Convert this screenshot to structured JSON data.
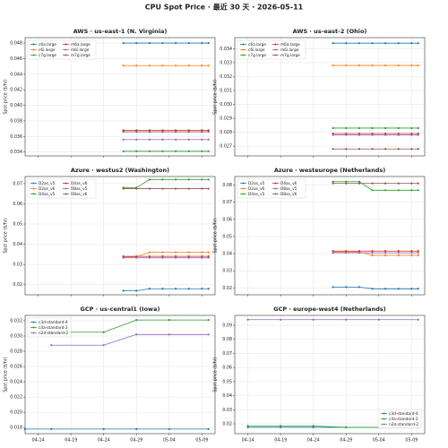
{
  "title": "CPU Spot Price · 最近 30 天 · 2026-05-11",
  "chart_data": [
    {
      "type": "line",
      "title": "AWS · us-east-1 (N. Virginia)",
      "y_label": "Spot price ($/hr)",
      "legend": "upper left",
      "grid": true,
      "xlim": [
        "04-12",
        "05-11"
      ],
      "xticks": [
        "04-14",
        "04-19",
        "04-24",
        "04-29",
        "05-04",
        "05-09"
      ],
      "ylim": [
        0.0335,
        0.0487
      ],
      "yticks": [
        0.034,
        0.036,
        0.038,
        {
          "value": 0.04,
          "label": "0.040"
        },
        0.042,
        0.044,
        0.046,
        0.048
      ],
      "x": [
        "04-27",
        "04-29",
        "05-01",
        "05-03",
        "05-05",
        "05-07",
        "05-09",
        "05-10"
      ],
      "series": [
        {
          "name": "c6a.large",
          "color": "#1f77b4",
          "values": [
            0.048,
            0.048,
            0.048,
            0.048,
            0.048,
            0.048,
            0.048,
            0.048
          ]
        },
        {
          "name": "c6i.large",
          "color": "#ff7f0e",
          "values": [
            0.0451,
            0.0451,
            0.0451,
            0.0451,
            0.0451,
            0.0451,
            0.0451,
            0.0451
          ]
        },
        {
          "name": "c7g.large",
          "color": "#2ca02c",
          "values": [
            0.0341,
            0.0341,
            0.0341,
            0.0341,
            0.0341,
            0.0341,
            0.0341,
            0.0341
          ]
        },
        {
          "name": "m6a.large",
          "color": "#d62728",
          "values": [
            0.0368,
            0.0368,
            0.0368,
            0.0368,
            0.0368,
            0.0368,
            0.0368,
            0.0368
          ]
        },
        {
          "name": "m6i.large",
          "color": "#9467bd",
          "values": [
            0.0356,
            0.0356,
            0.0356,
            0.0356,
            0.0356,
            0.0356,
            0.0356,
            0.0356
          ]
        },
        {
          "name": "m7g.large",
          "color": "#8c564b",
          "values": [
            0.0366,
            0.0366,
            0.0366,
            0.0366,
            0.0366,
            0.0366,
            0.0366,
            0.0366
          ]
        }
      ]
    },
    {
      "type": "line",
      "title": "AWS · us-east-2 (Ohio)",
      "y_label": "Spot price ($/hr)",
      "legend": "upper left",
      "grid": true,
      "xlim": [
        "04-12",
        "05-11"
      ],
      "xticks": [
        "04-14",
        "04-19",
        "04-24",
        "04-29",
        "05-04",
        "05-09"
      ],
      "ylim": [
        0.0263,
        0.0348
      ],
      "yticks": [
        0.027,
        0.028,
        0.029,
        {
          "value": 0.03,
          "label": "0.030"
        },
        0.031,
        0.032,
        0.033,
        0.034
      ],
      "x": [
        "04-27",
        "04-29",
        "05-01",
        "05-03",
        "05-05",
        "05-07",
        "05-09",
        "05-10"
      ],
      "series": [
        {
          "name": "c6a.large",
          "color": "#1f77b4",
          "values": [
            0.0344,
            0.0344,
            0.0344,
            0.0344,
            0.0344,
            0.0344,
            0.0344,
            0.0344
          ]
        },
        {
          "name": "c6i.large",
          "color": "#ff7f0e",
          "values": [
            0.0328,
            0.0328,
            0.0328,
            0.0328,
            0.0328,
            0.0328,
            0.0328,
            0.0328
          ]
        },
        {
          "name": "c7g.large",
          "color": "#2ca02c",
          "values": [
            0.0283,
            0.0283,
            0.0283,
            0.0283,
            0.0283,
            0.0283,
            0.0283,
            0.0283
          ]
        },
        {
          "name": "m6a.large",
          "color": "#d62728",
          "values": [
            0.0279,
            0.0279,
            0.0279,
            0.0279,
            0.0279,
            0.0279,
            0.0279,
            0.0279
          ]
        },
        {
          "name": "m6i.large",
          "color": "#9467bd",
          "values": [
            0.0278,
            0.0278,
            0.0278,
            0.0278,
            0.0278,
            0.0278,
            0.0278,
            0.0278
          ]
        },
        {
          "name": "m7g.large",
          "color": "#8c564b",
          "values": [
            0.0268,
            0.0268,
            0.0268,
            0.0268,
            0.0268,
            0.0268,
            0.0268,
            0.0268
          ]
        }
      ]
    },
    {
      "type": "line",
      "title": "Azure · westus2 (Washington)",
      "y_label": "Spot price ($/hr)",
      "legend": "upper left",
      "grid": true,
      "xlim": [
        "04-12",
        "05-11"
      ],
      "xticks": [
        "04-14",
        "04-19",
        "04-24",
        "04-29",
        "05-04",
        "05-09"
      ],
      "ylim": [
        0.015,
        0.0735
      ],
      "yticks": [
        0.02,
        0.03,
        0.04,
        0.05,
        0.06,
        0.07
      ],
      "x": [
        "04-27",
        "04-29",
        "05-01",
        "05-03",
        "05-05",
        "05-07",
        "05-09",
        "05-10"
      ],
      "series": [
        {
          "name": "D2as_v5",
          "color": "#1f77b4",
          "values": [
            0.017,
            0.017,
            0.018,
            0.018,
            0.018,
            0.018,
            0.018,
            0.018
          ]
        },
        {
          "name": "D2as_v6",
          "color": "#ff7f0e",
          "values": [
            0.0338,
            0.0338,
            0.036,
            0.036,
            0.036,
            0.036,
            0.036,
            0.036
          ]
        },
        {
          "name": "D4as_v5",
          "color": "#2ca02c",
          "values": [
            0.068,
            0.068,
            0.072,
            0.072,
            0.072,
            0.072,
            0.072,
            0.072
          ]
        },
        {
          "name": "D4as_v6",
          "color": "#d62728",
          "values": [
            0.034,
            0.034,
            0.034,
            0.034,
            0.034,
            0.034,
            0.034,
            0.034
          ]
        },
        {
          "name": "D8as_v5",
          "color": "#9467bd",
          "values": [
            0.0333,
            0.0333,
            0.0333,
            0.0333,
            0.0333,
            0.0333,
            0.0333,
            0.0333
          ]
        },
        {
          "name": "D8as_v6",
          "color": "#8c564b",
          "values": [
            0.0675,
            0.0675,
            0.0675,
            0.0675,
            0.0675,
            0.0675,
            0.0675,
            0.0675
          ]
        }
      ]
    },
    {
      "type": "line",
      "title": "Azure · westeurope (Netherlands)",
      "y_label": "Spot price ($/hr)",
      "legend": "upper left",
      "grid": true,
      "xlim": [
        "04-12",
        "05-11"
      ],
      "xticks": [
        "04-14",
        "04-19",
        "04-24",
        "04-29",
        "05-04",
        "05-09"
      ],
      "ylim": [
        0.016,
        0.085
      ],
      "yticks": [
        0.02,
        0.03,
        0.04,
        0.05,
        0.06,
        0.07,
        0.08
      ],
      "x": [
        "04-27",
        "04-29",
        "05-01",
        "05-03",
        "05-05",
        "05-07",
        "05-09",
        "05-10"
      ],
      "series": [
        {
          "name": "D2as_v5",
          "color": "#1f77b4",
          "values": [
            0.0205,
            0.0205,
            0.0205,
            0.0195,
            0.0195,
            0.0195,
            0.0195,
            0.0195
          ]
        },
        {
          "name": "D2as_v6",
          "color": "#ff7f0e",
          "values": [
            0.041,
            0.041,
            0.041,
            0.039,
            0.039,
            0.039,
            0.039,
            0.039
          ]
        },
        {
          "name": "D4as_v5",
          "color": "#2ca02c",
          "values": [
            0.082,
            0.082,
            0.082,
            0.077,
            0.077,
            0.077,
            0.077,
            0.077
          ]
        },
        {
          "name": "D4as_v6",
          "color": "#d62728",
          "values": [
            0.0415,
            0.0415,
            0.0415,
            0.0415,
            0.0415,
            0.0415,
            0.0415,
            0.0415
          ]
        },
        {
          "name": "D8as_v5",
          "color": "#9467bd",
          "values": [
            0.0405,
            0.0405,
            0.0405,
            0.0405,
            0.0405,
            0.0405,
            0.0405,
            0.0405
          ]
        },
        {
          "name": "D8as_v6",
          "color": "#8c564b",
          "values": [
            0.081,
            0.081,
            0.081,
            0.081,
            0.081,
            0.081,
            0.081,
            0.081
          ]
        }
      ]
    },
    {
      "type": "line",
      "title": "GCP · us-central1 (Iowa)",
      "y_label": "Spot price ($/hr)",
      "legend": "upper left",
      "grid": true,
      "xlim": [
        "04-12",
        "05-11"
      ],
      "xticks": [
        "04-14",
        "04-19",
        "04-24",
        "04-29",
        "05-04",
        "05-09"
      ],
      "ylim": [
        0.0172,
        0.0327
      ],
      "yticks": [
        0.018,
        {
          "value": 0.02,
          "label": "0.020"
        },
        0.022,
        0.024,
        0.026,
        0.028,
        {
          "value": 0.03,
          "label": "0.030"
        },
        0.032
      ],
      "x": [
        "04-12",
        "04-16",
        "04-24",
        "04-29",
        "05-04",
        "05-10"
      ],
      "series": [
        {
          "name": "c3d-standard-4",
          "color": "#1f77b4",
          "values": [
            0.0178,
            0.0178,
            0.0178,
            0.0178,
            0.0178,
            0.0178
          ]
        },
        {
          "name": "c4a-standard-2",
          "color": "#2ca02c",
          "values": [
            null,
            0.0305,
            0.0305,
            0.0321,
            0.0321,
            0.0321
          ]
        },
        {
          "name": "n2d-standard-2",
          "color": "#9467bd",
          "values": [
            null,
            0.0288,
            0.0288,
            0.0302,
            0.0302,
            0.0302
          ]
        }
      ]
    },
    {
      "type": "line",
      "title": "GCP · europe-west4 (Netherlands)",
      "y_label": "Spot price ($/hr)",
      "legend": "lower right",
      "grid": true,
      "xlim": [
        "04-12",
        "05-11"
      ],
      "xticks": [
        "04-14",
        "04-19",
        "04-24",
        "04-29",
        "05-04",
        "05-09"
      ],
      "ylim": [
        0.013,
        0.097
      ],
      "yticks": [
        0.02,
        0.03,
        0.04,
        0.05,
        0.06,
        0.07,
        0.08,
        0.09
      ],
      "x": [
        "04-14",
        "04-19",
        "04-24",
        "04-29",
        "05-04",
        "05-10"
      ],
      "series": [
        {
          "name": "c3d-standard-4",
          "color": "#1f77b4",
          "values": [
            0.0175,
            0.0175,
            0.0175,
            0.0175,
            0.0175,
            0.0175
          ]
        },
        {
          "name": "c4a-standard-2",
          "color": "#2ca02c",
          "values": [
            0.0185,
            0.0185,
            0.0185,
            0.0175,
            0.0175,
            0.0175
          ]
        },
        {
          "name": "n2d-standard-2",
          "color": "#9467bd",
          "values": [
            0.094,
            0.094,
            0.094,
            0.094,
            0.094,
            0.094
          ]
        }
      ]
    }
  ]
}
